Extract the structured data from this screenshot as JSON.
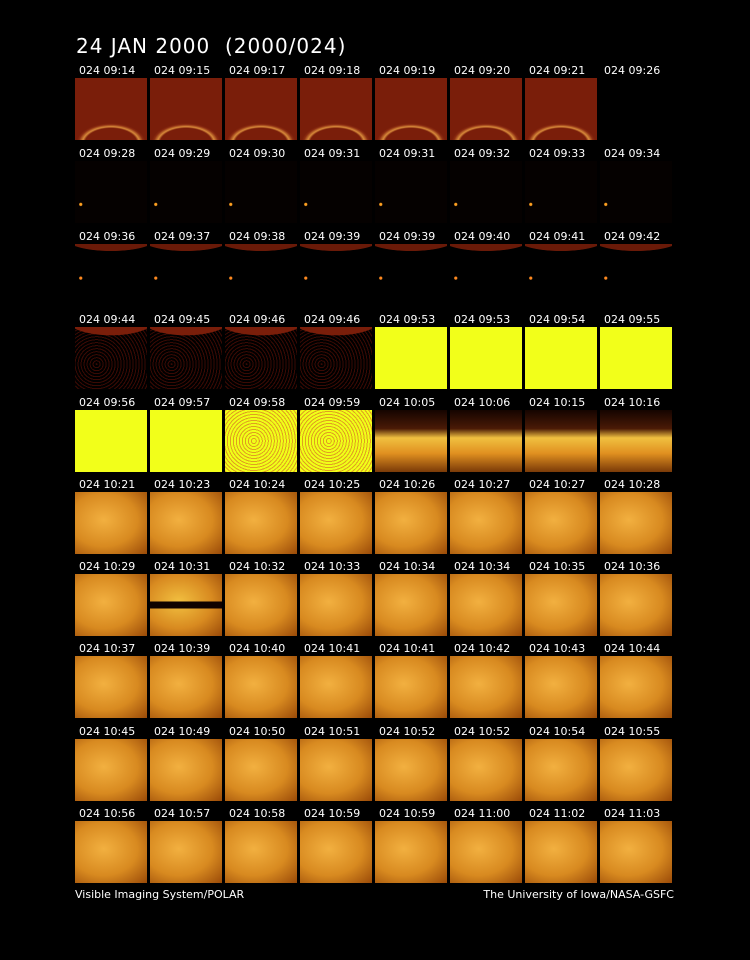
{
  "title": "24 JAN 2000  (2000/024)",
  "frames": [
    [
      "024 09:14",
      "024 09:15",
      "024 09:17",
      "024 09:18",
      "024 09:19",
      "024 09:20",
      "024 09:21",
      "024 09:26"
    ],
    [
      "024 09:28",
      "024 09:29",
      "024 09:30",
      "024 09:31",
      "024 09:31",
      "024 09:32",
      "024 09:33",
      "024 09:34"
    ],
    [
      "024 09:36",
      "024 09:37",
      "024 09:38",
      "024 09:39",
      "024 09:39",
      "024 09:40",
      "024 09:41",
      "024 09:42"
    ],
    [
      "024 09:44",
      "024 09:45",
      "024 09:46",
      "024 09:46",
      "024 09:53",
      "024 09:53",
      "024 09:54",
      "024 09:55"
    ],
    [
      "024 09:56",
      "024 09:57",
      "024 09:58",
      "024 09:59",
      "024 10:05",
      "024 10:06",
      "024 10:15",
      "024 10:16"
    ],
    [
      "024 10:21",
      "024 10:23",
      "024 10:24",
      "024 10:25",
      "024 10:26",
      "024 10:27",
      "024 10:27",
      "024 10:28"
    ],
    [
      "024 10:29",
      "024 10:31",
      "024 10:32",
      "024 10:33",
      "024 10:34",
      "024 10:34",
      "024 10:35",
      "024 10:36"
    ],
    [
      "024 10:37",
      "024 10:39",
      "024 10:40",
      "024 10:41",
      "024 10:41",
      "024 10:42",
      "024 10:43",
      "024 10:44"
    ],
    [
      "024 10:45",
      "024 10:49",
      "024 10:50",
      "024 10:51",
      "024 10:52",
      "024 10:52",
      "024 10:54",
      "024 10:55"
    ],
    [
      "024 10:56",
      "024 10:57",
      "024 10:58",
      "024 10:59",
      "024 10:59",
      "024 11:00",
      "024 11:02",
      "024 11:03"
    ]
  ],
  "footer": {
    "left": "Visible Imaging System/POLAR",
    "right": "The University of Iowa/NASA-GSFC"
  }
}
